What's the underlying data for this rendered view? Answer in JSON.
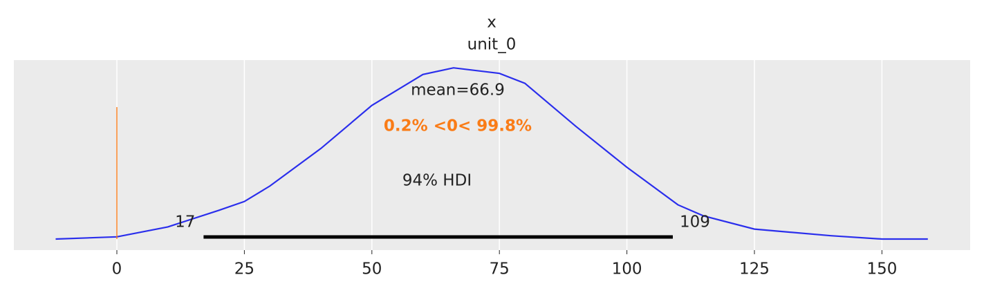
{
  "chart_data": {
    "type": "density",
    "title": "x",
    "subtitle": "unit_0",
    "x": [
      -12,
      0,
      10,
      20,
      25,
      30,
      40,
      50,
      60,
      66,
      75,
      80,
      90,
      100,
      110,
      115,
      125,
      140,
      150,
      159
    ],
    "values": [
      0.0,
      0.0002,
      0.0011,
      0.0026,
      0.0034,
      0.0048,
      0.0082,
      0.0121,
      0.0149,
      0.0155,
      0.015,
      0.0141,
      0.0102,
      0.0065,
      0.0031,
      0.0021,
      0.0009,
      0.0003,
      0.0,
      0.0
    ],
    "color": "#2a2eec",
    "xlim": [
      -20.2,
      167.3
    ],
    "ylim": [
      -0.001,
      0.0162
    ],
    "xticks": [
      0,
      25,
      50,
      75,
      100,
      125,
      150
    ],
    "grid": true,
    "mean_label": "mean=66.9",
    "ref_val": 0,
    "ref_color": "#fa7c17",
    "ref_label": "0.2% <0< 99.8%",
    "hdi_label": "94% HDI",
    "hdi": [
      17,
      109
    ]
  }
}
